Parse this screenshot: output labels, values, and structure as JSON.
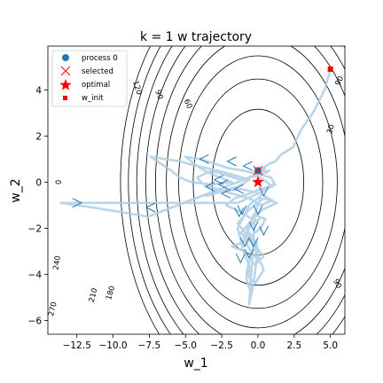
{
  "chart_data": {
    "type": "line",
    "title": "k = 1 w trajectory",
    "xlabel": "w_1",
    "ylabel": "w_2",
    "xlim": [
      -14.5,
      6.0
    ],
    "ylim": [
      -6.6,
      5.9
    ],
    "xticks": [
      "−12.5",
      "−10.0",
      "−7.5",
      "−5.0",
      "−2.5",
      "0.0",
      "2.5",
      "5.0"
    ],
    "xtick_values": [
      -12.5,
      -10.0,
      -7.5,
      -5.0,
      -2.5,
      0.0,
      2.5,
      5.0
    ],
    "yticks": [
      "−6",
      "−4",
      "−2",
      "0",
      "2",
      "4"
    ],
    "ytick_values": [
      -6,
      -4,
      -2,
      0,
      2,
      4
    ],
    "grid": false,
    "legend": {
      "placement": "top-left",
      "entries": [
        "process 0",
        "selected",
        "optimal",
        "w_init"
      ]
    },
    "contours": {
      "center": [
        0,
        0
      ],
      "function": "3*(w_1^2 + w_2^2)",
      "levels": [
        30,
        60,
        90,
        120,
        150,
        180,
        210,
        240,
        270
      ],
      "labels": [
        {
          "text": "90",
          "x": 5.6,
          "y": 4.4
        },
        {
          "text": "30",
          "x": 5.0,
          "y": 2.3
        },
        {
          "text": "60",
          "x": -4.8,
          "y": 3.4
        },
        {
          "text": "90",
          "x": -6.8,
          "y": 3.8
        },
        {
          "text": "120",
          "x": -8.3,
          "y": 4.1
        },
        {
          "text": "90",
          "x": 5.5,
          "y": -4.4
        },
        {
          "text": "180",
          "x": -10.2,
          "y": -4.8
        },
        {
          "text": "210",
          "x": -11.4,
          "y": -4.9
        },
        {
          "text": "240",
          "x": -13.9,
          "y": -3.5
        },
        {
          "text": "270",
          "x": -14.2,
          "y": -5.5
        },
        {
          "text": "0",
          "x": -13.8,
          "y": 0.0
        }
      ]
    },
    "series": [
      {
        "name": "process 0",
        "color": "#aecde4",
        "arrow_color": "#1f77b4",
        "x": [
          5.0,
          4.6,
          3.8,
          3.0,
          2.4,
          1.6,
          1.2,
          0.8,
          0.3,
          0.6,
          0.1,
          -0.3,
          0.9,
          1.1,
          1.0,
          0.4,
          -0.2,
          0.5,
          -0.4,
          -1.0,
          -2.0,
          -3.0,
          -4.0,
          -5.0,
          -4.2,
          -3.4,
          -2.6,
          -1.8,
          -3.2,
          -4.6,
          -5.4,
          -6.0,
          -7.4,
          -5.4,
          -4.2,
          -2.8,
          -1.6,
          -0.6,
          -1.4,
          -2.6,
          -3.6,
          -2.4,
          -1.2,
          0.2,
          1.0,
          0.2,
          -0.6,
          -1.8,
          -2.8,
          -3.8,
          -4.2,
          -3.2,
          -2.2,
          -1.2,
          0.0,
          0.8,
          -0.2,
          -1.4,
          -7.6,
          -9.5,
          -11.4,
          -12.5,
          -13.6,
          -11.6,
          -9.6,
          -7.4,
          -5.4,
          -3.4,
          -1.4,
          0.0,
          0.6,
          1.2,
          0.2,
          -0.6,
          -1.6,
          -2.2,
          -1.2,
          -0.4,
          0.3,
          1.3,
          0.4,
          -0.6,
          -1.4,
          -0.6,
          0.2,
          0.5,
          -0.3,
          -1.0,
          -1.8,
          -0.9,
          -0.2,
          0.4,
          -0.5,
          -1.2,
          -0.6,
          0.1,
          -0.4,
          -1.0,
          -0.5,
          0.0,
          -0.3,
          -0.8,
          -0.6,
          -0.1,
          0.0,
          0.4,
          -0.2,
          -0.8,
          -0.6,
          -0.8,
          -0.5,
          -0.6,
          -1.0,
          -1.4,
          -0.6,
          0.2,
          -0.2,
          -0.6,
          -0.3,
          0.0
        ],
        "y": [
          4.9,
          4.0,
          3.0,
          2.3,
          1.5,
          1.2,
          0.9,
          0.8,
          0.6,
          0.4,
          0.5,
          0.4,
          0.2,
          0.0,
          -0.2,
          0.1,
          0.3,
          0.6,
          0.4,
          0.5,
          0.6,
          0.8,
          1.0,
          1.1,
          0.7,
          0.4,
          0.2,
          0.0,
          -0.1,
          0.0,
          0.2,
          0.5,
          1.1,
          0.9,
          0.7,
          0.5,
          0.3,
          0.1,
          -0.2,
          -0.4,
          -0.6,
          -0.4,
          -0.3,
          -0.5,
          -0.8,
          -1.0,
          -0.7,
          -0.5,
          -0.3,
          -0.1,
          0.2,
          0.5,
          0.3,
          0.1,
          0.3,
          0.5,
          0.3,
          0.0,
          -1.5,
          -1.3,
          -1.1,
          -1.0,
          -0.9,
          -0.9,
          -0.9,
          -0.9,
          -0.9,
          -0.9,
          -0.9,
          -0.5,
          -0.3,
          -0.1,
          -0.3,
          -0.5,
          -0.7,
          -1.0,
          -1.3,
          -1.6,
          -1.2,
          -0.9,
          -0.7,
          -1.2,
          -1.8,
          -2.4,
          -2.0,
          -1.6,
          -1.4,
          -2.6,
          -2.8,
          -3.0,
          -3.6,
          -3.2,
          -2.6,
          -2.2,
          -1.8,
          -1.6,
          -1.8,
          -2.4,
          -3.0,
          -3.4,
          -2.6,
          -2.0,
          -2.2,
          -2.6,
          -3.2,
          -3.8,
          -4.4,
          -4.0,
          -3.4,
          -4.2,
          -4.8,
          -3.6,
          -3.0,
          -2.0,
          -1.0,
          -0.6,
          -1.4,
          -5.3,
          -4.4,
          -2.9
        ]
      },
      {
        "name": "selected",
        "marker": "x",
        "color": "#ff0000",
        "x": [
          0.0
        ],
        "y": [
          0.5
        ]
      },
      {
        "name": "optimal",
        "marker": "star",
        "color": "#ff0000",
        "x": [
          0.0
        ],
        "y": [
          0.0
        ]
      },
      {
        "name": "w_init",
        "marker": "square",
        "color": "#ff0000",
        "x": [
          5.0
        ],
        "y": [
          4.9
        ]
      }
    ],
    "process_dot": {
      "x": 0.0,
      "y": 0.5,
      "color": "#1f77b4"
    },
    "arrows": [
      {
        "x": -3.7,
        "y": 1.0,
        "dir": "left"
      },
      {
        "x": -1.8,
        "y": 0.9,
        "dir": "left"
      },
      {
        "x": -0.7,
        "y": 0.7,
        "dir": "left"
      },
      {
        "x": -2.7,
        "y": 0.1,
        "dir": "left"
      },
      {
        "x": -3.3,
        "y": -0.2,
        "dir": "left"
      },
      {
        "x": -1.3,
        "y": -0.3,
        "dir": "left"
      },
      {
        "x": -2.2,
        "y": -0.5,
        "dir": "left"
      },
      {
        "x": 0.4,
        "y": -0.4,
        "dir": "down"
      },
      {
        "x": 0.0,
        "y": -1.2,
        "dir": "down"
      },
      {
        "x": -1.1,
        "y": -1.2,
        "dir": "down"
      },
      {
        "x": -0.3,
        "y": -1.9,
        "dir": "down"
      },
      {
        "x": -0.9,
        "y": -2.6,
        "dir": "down"
      },
      {
        "x": -0.3,
        "y": -2.6,
        "dir": "down"
      },
      {
        "x": -0.6,
        "y": -3.1,
        "dir": "down"
      },
      {
        "x": -1.2,
        "y": -3.3,
        "dir": "down"
      },
      {
        "x": 0.4,
        "y": -2.1,
        "dir": "down"
      },
      {
        "x": -12.5,
        "y": -0.9,
        "dir": "right"
      },
      {
        "x": -7.4,
        "y": -1.1,
        "dir": "left"
      },
      {
        "x": -2.4,
        "y": -0.1,
        "dir": "left"
      },
      {
        "x": -1.3,
        "y": -1.3,
        "dir": "down"
      }
    ]
  }
}
